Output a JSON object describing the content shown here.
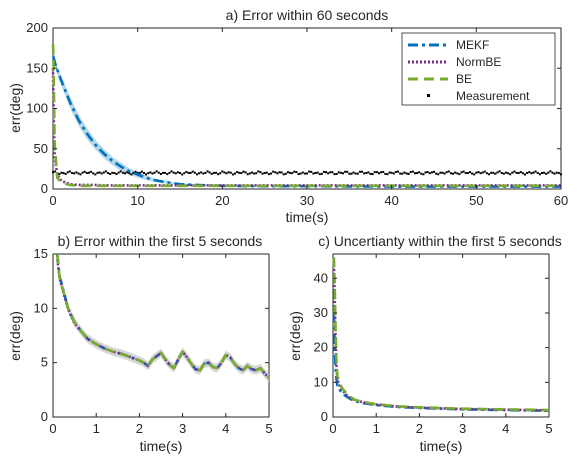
{
  "colors": {
    "MEKF": "#0072BD",
    "NormBE": "#7E2F8E",
    "BE": "#77AC30",
    "Measurement": "#000000"
  },
  "chart_data": [
    {
      "type": "line",
      "title": "a) Error within 60 seconds",
      "xlabel": "time(s)",
      "ylabel": "err(deg)",
      "xlim": [
        0,
        60
      ],
      "ylim": [
        0,
        200
      ],
      "xticks": [
        0,
        10,
        20,
        30,
        40,
        50,
        60
      ],
      "yticks": [
        0,
        50,
        100,
        150,
        200
      ],
      "grid": false,
      "legend": "top-right",
      "legend_entries": [
        "MEKF",
        "NormBE",
        "BE",
        "Measurement"
      ],
      "x": [
        0,
        0.05,
        0.2,
        0.5,
        1,
        2,
        3,
        4,
        5,
        6,
        7,
        8,
        9,
        10,
        11,
        12,
        13,
        14,
        15,
        17,
        20,
        25,
        30,
        40,
        50,
        60
      ],
      "series": [
        {
          "name": "MEKF",
          "style": "dash-dot",
          "values": [
            165,
            164,
            158,
            148,
            134,
            108,
            86,
            69,
            55,
            44,
            35,
            28,
            22,
            18,
            14,
            11,
            9,
            7.5,
            6,
            5,
            4,
            3.5,
            3.5,
            3,
            3,
            3
          ],
          "band": [
            0,
            1,
            3,
            5,
            6,
            7,
            7,
            7,
            6,
            6,
            5,
            5,
            4,
            4,
            3,
            2,
            2,
            1,
            1,
            1,
            0.5,
            0,
            0,
            0,
            0,
            0
          ]
        },
        {
          "name": "NormBE",
          "style": "dotted",
          "values": [
            150,
            110,
            40,
            18,
            10,
            6,
            5,
            5,
            5,
            4.5,
            4.5,
            4.5,
            4.5,
            4.5,
            4.5,
            4.5,
            4.5,
            4.5,
            4.5,
            4.5,
            4.5,
            4.5,
            4.5,
            4.5,
            4.5,
            4.5
          ]
        },
        {
          "name": "BE",
          "style": "dashed",
          "values": [
            180,
            165,
            55,
            14,
            8,
            5,
            4,
            4,
            4,
            4,
            4,
            4,
            4,
            4,
            4,
            4,
            4,
            4,
            4,
            4,
            4,
            4,
            4,
            4,
            4,
            4
          ]
        },
        {
          "name": "Measurement",
          "style": "points",
          "values": [
            20,
            20,
            20,
            20,
            20,
            20,
            20,
            20,
            20,
            20,
            20,
            20,
            20,
            20,
            20,
            20,
            20,
            20,
            20,
            20,
            20,
            20,
            20,
            20,
            20,
            20
          ]
        }
      ]
    },
    {
      "type": "line",
      "title": "b) Error within the first 5 seconds",
      "xlabel": "time(s)",
      "ylabel": "err(deg)",
      "xlim": [
        0,
        5
      ],
      "ylim": [
        0,
        15
      ],
      "xticks": [
        0,
        1,
        2,
        3,
        4,
        5
      ],
      "yticks": [
        0,
        5,
        10,
        15
      ],
      "grid": false,
      "x": [
        0.1,
        0.15,
        0.25,
        0.35,
        0.5,
        0.65,
        0.8,
        1.0,
        1.2,
        1.4,
        1.6,
        1.8,
        2.0,
        2.1,
        2.2,
        2.3,
        2.4,
        2.5,
        2.6,
        2.7,
        2.8,
        2.9,
        3.0,
        3.1,
        3.2,
        3.3,
        3.4,
        3.5,
        3.6,
        3.7,
        3.8,
        3.9,
        4.0,
        4.1,
        4.2,
        4.3,
        4.4,
        4.5,
        4.6,
        4.7,
        4.8,
        4.9,
        5.0
      ],
      "series": [
        {
          "name": "MEKF",
          "style": "dash-dot",
          "values": [
            15,
            13,
            11.5,
            10,
            8.7,
            7.9,
            7.2,
            6.7,
            6.3,
            6.0,
            5.8,
            5.5,
            5.2,
            5.0,
            4.7,
            5.3,
            5.6,
            5.9,
            5.3,
            4.8,
            4.5,
            5.3,
            6.0,
            5.5,
            4.9,
            4.4,
            4.3,
            4.9,
            5.0,
            4.6,
            4.5,
            5.0,
            5.7,
            5.5,
            4.9,
            4.5,
            4.3,
            4.7,
            4.4,
            4.3,
            4.5,
            4.0,
            3.6
          ],
          "band": [
            0.4,
            0.4,
            0.4,
            0.4,
            0.4,
            0.4,
            0.4,
            0.4,
            0.4,
            0.4,
            0.4,
            0.4,
            0.4,
            0.4,
            0.4,
            0.4,
            0.4,
            0.4,
            0.4,
            0.4,
            0.4,
            0.4,
            0.4,
            0.4,
            0.4,
            0.4,
            0.4,
            0.4,
            0.4,
            0.4,
            0.4,
            0.4,
            0.4,
            0.4,
            0.4,
            0.4,
            0.4,
            0.4,
            0.4,
            0.4,
            0.4,
            0.4,
            0.4
          ]
        },
        {
          "name": "NormBE",
          "style": "dotted",
          "values": [
            14.5,
            12.8,
            11.3,
            9.9,
            8.6,
            7.9,
            7.2,
            6.7,
            6.3,
            6.0,
            5.8,
            5.5,
            5.2,
            5.0,
            4.7,
            5.3,
            5.6,
            5.9,
            5.3,
            4.8,
            4.5,
            5.3,
            6.0,
            5.5,
            4.9,
            4.4,
            4.3,
            4.9,
            5.0,
            4.6,
            4.5,
            5.0,
            5.7,
            5.5,
            4.9,
            4.5,
            4.3,
            4.7,
            4.4,
            4.3,
            4.5,
            4.0,
            3.6
          ]
        },
        {
          "name": "BE",
          "style": "dashed",
          "values": [
            15,
            12.9,
            11.4,
            10,
            8.7,
            7.9,
            7.2,
            6.7,
            6.3,
            6.0,
            5.8,
            5.5,
            5.2,
            5.0,
            4.7,
            5.3,
            5.6,
            5.9,
            5.3,
            4.8,
            4.5,
            5.3,
            6.0,
            5.5,
            4.9,
            4.4,
            4.3,
            4.9,
            5.0,
            4.6,
            4.5,
            5.0,
            5.7,
            5.5,
            4.9,
            4.5,
            4.3,
            4.7,
            4.4,
            4.3,
            4.5,
            4.0,
            3.6
          ]
        }
      ]
    },
    {
      "type": "line",
      "title": "c) Uncertianty within the first 5 seconds",
      "xlabel": "time(s)",
      "ylabel": "err(deg)",
      "xlim": [
        0,
        5
      ],
      "ylim": [
        0,
        47
      ],
      "xticks": [
        0,
        1,
        2,
        3,
        4,
        5
      ],
      "yticks": [
        0,
        10,
        20,
        30,
        40
      ],
      "grid": false,
      "x": [
        0.02,
        0.04,
        0.06,
        0.08,
        0.1,
        0.15,
        0.2,
        0.3,
        0.4,
        0.5,
        0.7,
        1.0,
        1.5,
        2.0,
        2.5,
        3.0,
        3.5,
        4.0,
        4.5,
        5.0
      ],
      "series": [
        {
          "name": "MEKF",
          "style": "dash-dot",
          "values": [
            30,
            20,
            14,
            11,
            9,
            8,
            7,
            6,
            5.2,
            4.6,
            4,
            3.4,
            2.9,
            2.6,
            2.4,
            2.2,
            2.1,
            2.0,
            1.9,
            1.8
          ]
        },
        {
          "name": "NormBE",
          "style": "dotted",
          "values": [
            45,
            35,
            22,
            15,
            11,
            9,
            8,
            6.5,
            5.5,
            4.9,
            4.2,
            3.6,
            3.0,
            2.7,
            2.5,
            2.3,
            2.2,
            2.1,
            2.0,
            1.9
          ]
        },
        {
          "name": "BE",
          "style": "dashed",
          "values": [
            46,
            38,
            25,
            16,
            12,
            10,
            8.5,
            7,
            5.8,
            5.0,
            4.3,
            3.7,
            3.1,
            2.8,
            2.6,
            2.4,
            2.3,
            2.2,
            2.1,
            2.0
          ]
        }
      ]
    }
  ]
}
